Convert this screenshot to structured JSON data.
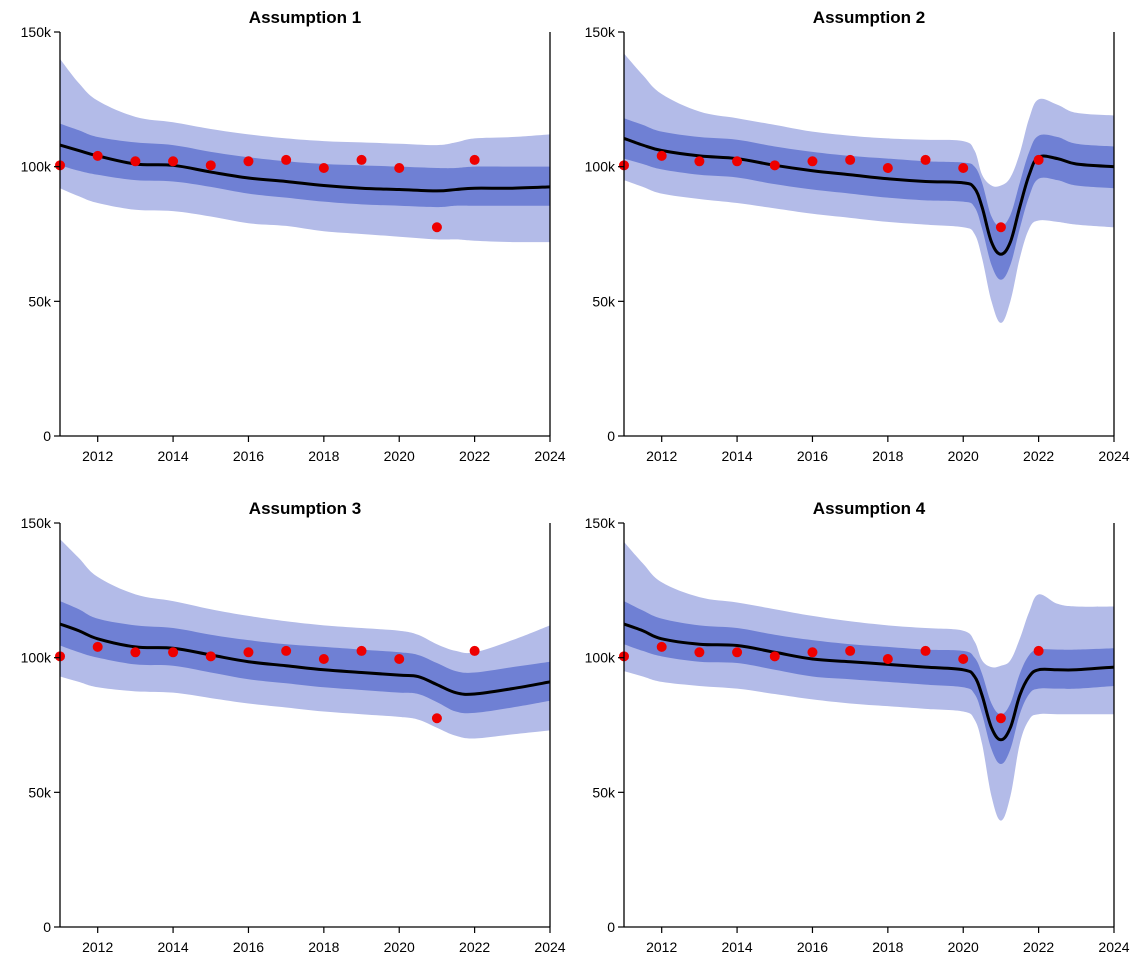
{
  "colors": {
    "outer_band": "#b3bbe8",
    "inner_band": "#6f80d4",
    "median_line": "#000000",
    "observed_points": "#ee0000"
  },
  "chart_data": [
    {
      "type": "line",
      "title": "Assumption 1",
      "xlim": [
        2011,
        2024
      ],
      "ylim": [
        0,
        150000
      ],
      "x_ticks": [
        "2012",
        "2014",
        "2016",
        "2018",
        "2020",
        "2022",
        "2024"
      ],
      "y_ticks": [
        "0",
        "50k",
        "100k",
        "150k"
      ],
      "x": [
        2011,
        2011.5,
        2012,
        2013,
        2014,
        2015,
        2016,
        2017,
        2018,
        2019,
        2020,
        2021,
        2021.5,
        2022,
        2023,
        2024
      ],
      "median": [
        108000,
        106000,
        104000,
        101000,
        100500,
        98000,
        95800,
        94500,
        93000,
        92000,
        91500,
        91000,
        91500,
        92000,
        92000,
        92500
      ],
      "inner_upper": [
        116000,
        113500,
        111000,
        109000,
        108000,
        105500,
        103500,
        102000,
        101000,
        100500,
        100000,
        99500,
        99500,
        100000,
        100000,
        100000
      ],
      "inner_lower": [
        100500,
        98500,
        97000,
        95000,
        94500,
        92500,
        90000,
        88500,
        87000,
        86000,
        85500,
        85000,
        85500,
        85500,
        85500,
        85500
      ],
      "outer_upper": [
        140000,
        131000,
        124500,
        118500,
        116500,
        114000,
        112000,
        110500,
        109500,
        109000,
        108500,
        108000,
        109000,
        110500,
        111000,
        112000
      ],
      "outer_lower": [
        92000,
        89000,
        86500,
        84000,
        83500,
        81500,
        79000,
        78000,
        76000,
        75000,
        74000,
        73000,
        73000,
        72500,
        72000,
        72000
      ],
      "observed": {
        "x": [
          2011,
          2012,
          2013,
          2014,
          2015,
          2016,
          2017,
          2018,
          2019,
          2020,
          2021,
          2022
        ],
        "y": [
          100500,
          104000,
          102000,
          102000,
          100500,
          102000,
          102500,
          99500,
          102500,
          99500,
          77500,
          102500
        ]
      }
    },
    {
      "type": "line",
      "title": "Assumption 2",
      "xlim": [
        2011,
        2024
      ],
      "ylim": [
        0,
        150000
      ],
      "x_ticks": [
        "2012",
        "2014",
        "2016",
        "2018",
        "2020",
        "2022",
        "2024"
      ],
      "y_ticks": [
        "0",
        "50k",
        "100k",
        "150k"
      ],
      "x": [
        2011,
        2011.5,
        2012,
        2013,
        2014,
        2015,
        2016,
        2017,
        2018,
        2019,
        2020,
        2020.3,
        2020.5,
        2020.75,
        2021,
        2021.25,
        2021.5,
        2021.75,
        2022,
        2022.5,
        2023,
        2024
      ],
      "median": [
        110500,
        108000,
        106000,
        104000,
        103000,
        100500,
        98500,
        97000,
        95500,
        94500,
        94000,
        92000,
        85000,
        72000,
        67500,
        72000,
        85000,
        97000,
        103500,
        103000,
        101000,
        100000
      ],
      "inner_upper": [
        118000,
        115500,
        113000,
        111000,
        110000,
        107500,
        105500,
        104000,
        103000,
        102000,
        101500,
        100000,
        94000,
        81500,
        78000,
        82000,
        94000,
        105500,
        111500,
        111000,
        108500,
        107500
      ],
      "inner_lower": [
        103000,
        101000,
        99000,
        97000,
        96000,
        93500,
        91500,
        90000,
        88500,
        87500,
        87000,
        85000,
        77000,
        63500,
        58000,
        63500,
        77000,
        89000,
        95500,
        95000,
        93000,
        92000
      ],
      "outer_upper": [
        142000,
        134000,
        127000,
        120500,
        118000,
        115500,
        113000,
        111500,
        110500,
        110000,
        109500,
        106000,
        97000,
        93000,
        93000,
        96000,
        105000,
        118000,
        125000,
        123000,
        120000,
        119000
      ],
      "outer_lower": [
        95000,
        92500,
        90000,
        88000,
        86500,
        84500,
        82500,
        81000,
        79500,
        78500,
        77500,
        75000,
        66000,
        50000,
        42000,
        50000,
        66000,
        77000,
        80000,
        79500,
        78500,
        77500
      ],
      "observed": {
        "x": [
          2011,
          2012,
          2013,
          2014,
          2015,
          2016,
          2017,
          2018,
          2019,
          2020,
          2021,
          2022
        ],
        "y": [
          100500,
          104000,
          102000,
          102000,
          100500,
          102000,
          102500,
          99500,
          102500,
          99500,
          77500,
          102500
        ]
      }
    },
    {
      "type": "line",
      "title": "Assumption 3",
      "xlim": [
        2011,
        2024
      ],
      "ylim": [
        0,
        150000
      ],
      "x_ticks": [
        "2012",
        "2014",
        "2016",
        "2018",
        "2020",
        "2022",
        "2024"
      ],
      "y_ticks": [
        "0",
        "50k",
        "100k",
        "150k"
      ],
      "x": [
        2011,
        2011.5,
        2012,
        2013,
        2014,
        2015,
        2016,
        2017,
        2018,
        2019,
        2020,
        2020.5,
        2021,
        2021.5,
        2022,
        2023,
        2024
      ],
      "median": [
        112500,
        110000,
        107000,
        104000,
        103500,
        101000,
        98500,
        97000,
        95500,
        94500,
        93500,
        93000,
        90000,
        87000,
        86500,
        88500,
        91000
      ],
      "inner_upper": [
        121000,
        118000,
        114500,
        112000,
        111000,
        108500,
        106500,
        105000,
        104000,
        103000,
        102000,
        101000,
        98000,
        95000,
        94500,
        96500,
        98500
      ],
      "inner_lower": [
        104500,
        102000,
        100000,
        97500,
        97000,
        94500,
        92000,
        90500,
        89000,
        88000,
        87000,
        86500,
        83500,
        80000,
        79500,
        81500,
        84000
      ],
      "outer_upper": [
        144000,
        137000,
        130000,
        123500,
        121000,
        118000,
        115500,
        113500,
        112000,
        111000,
        110000,
        108500,
        105000,
        102500,
        102000,
        106500,
        112000
      ],
      "outer_lower": [
        93000,
        91000,
        89000,
        87500,
        87000,
        85000,
        83000,
        81500,
        80000,
        79000,
        78000,
        77000,
        74000,
        71000,
        70000,
        71500,
        73000
      ],
      "observed": {
        "x": [
          2011,
          2012,
          2013,
          2014,
          2015,
          2016,
          2017,
          2018,
          2019,
          2020,
          2021,
          2022
        ],
        "y": [
          100500,
          104000,
          102000,
          102000,
          100500,
          102000,
          102500,
          99500,
          102500,
          99500,
          77500,
          102500
        ]
      }
    },
    {
      "type": "line",
      "title": "Assumption 4",
      "xlim": [
        2011,
        2024
      ],
      "ylim": [
        0,
        150000
      ],
      "x_ticks": [
        "2012",
        "2014",
        "2016",
        "2018",
        "2020",
        "2022",
        "2024"
      ],
      "y_ticks": [
        "0",
        "50k",
        "100k",
        "150k"
      ],
      "x": [
        2011,
        2011.5,
        2012,
        2013,
        2014,
        2015,
        2016,
        2017,
        2018,
        2019,
        2020,
        2020.3,
        2020.5,
        2020.75,
        2021,
        2021.25,
        2021.5,
        2021.75,
        2022,
        2022.5,
        2023,
        2024
      ],
      "median": [
        112500,
        110000,
        107000,
        105000,
        104500,
        102000,
        99500,
        98500,
        97500,
        96500,
        95500,
        93000,
        86000,
        74000,
        69500,
        74000,
        86000,
        93000,
        95500,
        95500,
        95500,
        96500
      ],
      "inner_upper": [
        121000,
        117500,
        114500,
        112000,
        111000,
        108500,
        106500,
        105000,
        104000,
        103000,
        102500,
        100000,
        94000,
        83000,
        79000,
        83000,
        94000,
        101000,
        103000,
        103000,
        103000,
        103500
      ],
      "inner_lower": [
        105000,
        102500,
        100500,
        98500,
        98000,
        95500,
        93000,
        92000,
        91000,
        90000,
        89000,
        86500,
        79000,
        66000,
        60500,
        66000,
        79000,
        86500,
        88500,
        88500,
        88500,
        89500
      ],
      "outer_upper": [
        143000,
        135000,
        128000,
        122500,
        120500,
        118000,
        115500,
        113500,
        112000,
        111000,
        110000,
        106000,
        99000,
        96500,
        97000,
        99000,
        107000,
        117000,
        123500,
        120000,
        119000,
        119000
      ],
      "outer_lower": [
        95000,
        93000,
        91000,
        89500,
        88500,
        86500,
        84500,
        83000,
        82000,
        81000,
        80000,
        77000,
        68000,
        48500,
        39500,
        48500,
        68000,
        77000,
        79000,
        79000,
        79000,
        79000
      ],
      "observed": {
        "x": [
          2011,
          2012,
          2013,
          2014,
          2015,
          2016,
          2017,
          2018,
          2019,
          2020,
          2021,
          2022
        ],
        "y": [
          100500,
          104000,
          102000,
          102000,
          100500,
          102000,
          102500,
          99500,
          102500,
          99500,
          77500,
          102500
        ]
      }
    }
  ]
}
